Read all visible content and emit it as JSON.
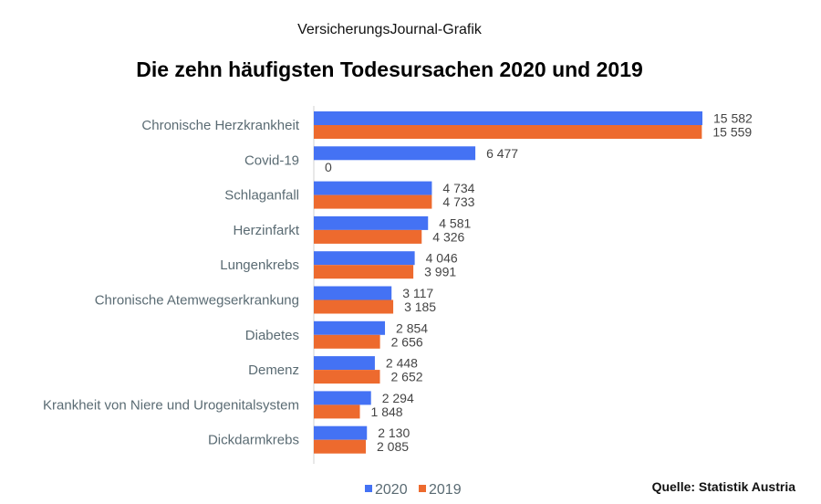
{
  "header": {
    "publisher": "VersicherungsJournal-Grafik",
    "title": "Die zehn häufigsten Todesursachen 2020 und 2019"
  },
  "footer": {
    "source": "Quelle: Statistik Austria"
  },
  "chart_data": {
    "type": "bar",
    "orientation": "horizontal",
    "title": "Die zehn häufigsten Todesursachen 2020 und 2019",
    "xlabel": "",
    "ylabel": "",
    "xlim": [
      0,
      16200
    ],
    "grid": false,
    "legend_position": "bottom",
    "categories": [
      "Chronische Herzkrankheit",
      "Covid-19",
      "Schlaganfall",
      "Herzinfarkt",
      "Lungenkrebs",
      "Chronische Atemwegserkrankung",
      "Diabetes",
      "Demenz",
      "Krankheit von Niere und Urogenitalsystem",
      "Dickdarmkrebs"
    ],
    "series": [
      {
        "name": "2020",
        "color": "#4472f4",
        "values": [
          15582,
          6477,
          4734,
          4581,
          4046,
          3117,
          2854,
          2448,
          2294,
          2130
        ],
        "labels": [
          "15 582",
          "6 477",
          "4 734",
          "4 581",
          "4 046",
          "3 117",
          "2 854",
          "2 448",
          "2 294",
          "2 130"
        ]
      },
      {
        "name": "2019",
        "color": "#ed6a2e",
        "values": [
          15559,
          0,
          4733,
          4326,
          3991,
          3185,
          2656,
          2652,
          1848,
          2085
        ],
        "labels": [
          "15 559",
          "0",
          "4 733",
          "4 326",
          "3 991",
          "3 185",
          "2 656",
          "2 652",
          "1 848",
          "2 085"
        ]
      }
    ]
  }
}
